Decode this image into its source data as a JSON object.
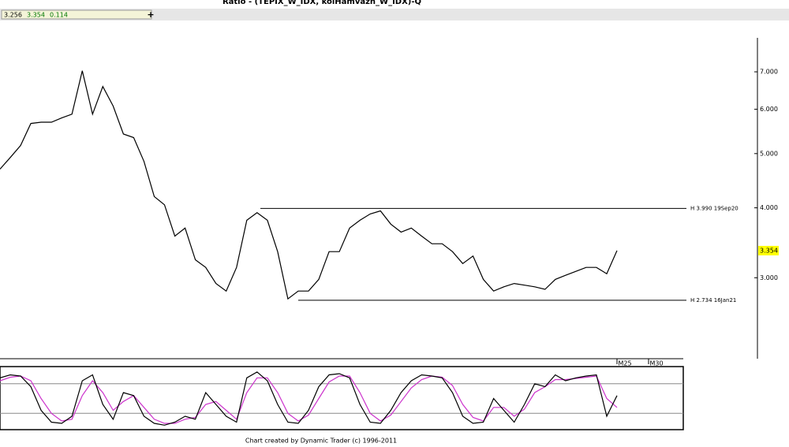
{
  "header": {
    "values": [
      "3.256",
      "3.354",
      "0.114"
    ],
    "button": "+"
  },
  "footer": "Chart created by Dynamic Trader (c) 1996-2011",
  "x_labels": [
    "M25",
    "M30"
  ],
  "chart_data": [
    {
      "type": "line",
      "title": "Ratio - (TEPIX_W_IDX, kolHamvazh_W_IDX)-Q",
      "log": true,
      "color": "#000000",
      "values": [
        4.69,
        4.92,
        5.17,
        5.66,
        5.69,
        5.69,
        5.79,
        5.88,
        7.03,
        5.88,
        6.59,
        6.08,
        5.42,
        5.34,
        4.84,
        4.19,
        4.05,
        3.56,
        3.68,
        3.23,
        3.13,
        2.93,
        2.84,
        3.13,
        3.8,
        3.92,
        3.8,
        3.34,
        2.75,
        2.84,
        2.84,
        2.98,
        3.34,
        3.34,
        3.68,
        3.8,
        3.9,
        3.95,
        3.74,
        3.62,
        3.68,
        3.56,
        3.45,
        3.45,
        3.34,
        3.18,
        3.28,
        2.98,
        2.84,
        2.89,
        2.93,
        2.91,
        2.89,
        2.86,
        2.98,
        3.03,
        3.08,
        3.13,
        3.13,
        3.05,
        3.354
      ],
      "ylim": [
        2.15,
        8.05
      ],
      "yticks": [
        {
          "value": 3,
          "label": "3.000"
        },
        {
          "value": 4,
          "label": "4.000"
        },
        {
          "value": 5,
          "label": "5.000"
        },
        {
          "value": 6,
          "label": "6.000"
        },
        {
          "value": 7,
          "label": "7.000"
        }
      ],
      "annotations": [
        {
          "text": "H 3.990 19Sep20",
          "value": 3.99
        },
        {
          "text": "H 2.734 16Jan21",
          "value": 2.734
        }
      ]
    },
    {
      "type": "line",
      "ylim": [
        0,
        100
      ],
      "levels": [
        75,
        25
      ],
      "series": [
        {
          "color": "#000000",
          "values": [
            85,
            90,
            88,
            70,
            30,
            10,
            8,
            20,
            80,
            90,
            40,
            15,
            60,
            55,
            20,
            8,
            5,
            10,
            20,
            15,
            60,
            40,
            20,
            10,
            85,
            95,
            80,
            40,
            10,
            8,
            30,
            70,
            90,
            92,
            85,
            40,
            10,
            8,
            30,
            60,
            80,
            90,
            88,
            85,
            60,
            20,
            8,
            10,
            50,
            30,
            10,
            40,
            75,
            70,
            90,
            80,
            85,
            88,
            90,
            20,
            55
          ]
        },
        {
          "color": "#cc33cc",
          "values": [
            80,
            86,
            88,
            80,
            50,
            25,
            12,
            15,
            55,
            80,
            60,
            30,
            45,
            55,
            35,
            15,
            8,
            8,
            15,
            18,
            40,
            45,
            30,
            15,
            60,
            85,
            85,
            60,
            25,
            12,
            22,
            50,
            78,
            88,
            88,
            60,
            25,
            12,
            22,
            45,
            68,
            82,
            88,
            86,
            72,
            40,
            18,
            12,
            35,
            35,
            20,
            32,
            60,
            70,
            82,
            82,
            84,
            86,
            88,
            50,
            35
          ]
        }
      ]
    }
  ]
}
